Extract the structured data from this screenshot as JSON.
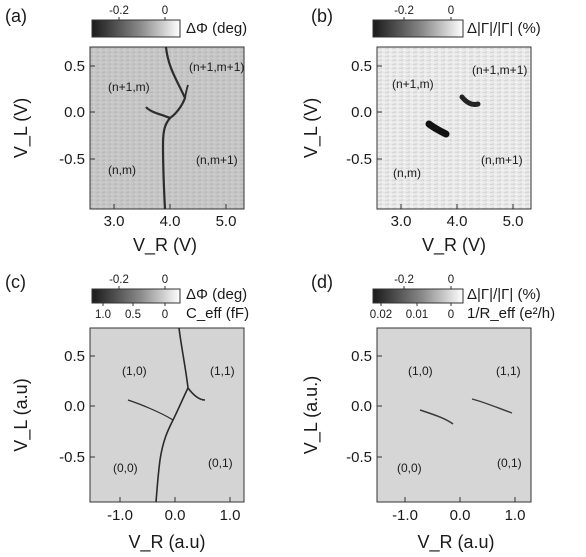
{
  "chart_data": [
    {
      "type": "heatmap",
      "panel_label": "(a)",
      "xlabel": "V_R (V)",
      "ylabel": "V_L (V)",
      "xticks": [
        "3.0",
        "4.0",
        "5.0"
      ],
      "yticks": [
        "0.5",
        "0.0",
        "-0.5"
      ],
      "xlim": [
        2.65,
        5.4
      ],
      "ylim": [
        -0.92,
        0.7
      ],
      "colorbar": {
        "label": "ΔΦ (deg)",
        "ticks": [
          "-0.2",
          "0"
        ],
        "range": [
          -0.3,
          0.02
        ]
      },
      "regions": [
        "(n+1,m)",
        "(n+1,m+1)",
        "(n,m)",
        "(n,m+1)"
      ],
      "grid": false
    },
    {
      "type": "heatmap",
      "panel_label": "(b)",
      "xlabel": "V_R (V)",
      "ylabel": "V_L (V)",
      "xticks": [
        "3.0",
        "4.0",
        "5.0"
      ],
      "yticks": [
        "0.5",
        "0.0",
        "-0.5"
      ],
      "xlim": [
        2.65,
        5.4
      ],
      "ylim": [
        -0.92,
        0.7
      ],
      "colorbar": {
        "label": "Δ|Γ|/|Γ| (%)",
        "ticks": [
          "-0.2",
          "0"
        ],
        "range": [
          -0.3,
          0.02
        ]
      },
      "regions": [
        "(n+1,m)",
        "(n+1,m+1)",
        "(n,m)",
        "(n,m+1)"
      ],
      "grid": false
    },
    {
      "type": "heatmap",
      "panel_label": "(c)",
      "xlabel": "V_R (a.u)",
      "ylabel": "V_L (a.u)",
      "xticks": [
        "-1.0",
        "0.0",
        "1.0"
      ],
      "yticks": [
        "0.5",
        "0.0",
        "-0.5"
      ],
      "xlim": [
        -1.35,
        1.35
      ],
      "ylim": [
        -0.92,
        0.72
      ],
      "colorbar": {
        "label": "ΔΦ (deg)",
        "ticks": [
          "-0.2",
          "0"
        ],
        "range": [
          -0.3,
          0.02
        ],
        "secondary_label": "C_eff (fF)",
        "secondary_ticks": [
          "1.0",
          "0.5",
          "0"
        ]
      },
      "regions": [
        "(1,0)",
        "(1,1)",
        "(0,0)",
        "(0,1)"
      ],
      "grid": false
    },
    {
      "type": "heatmap",
      "panel_label": "(d)",
      "xlabel": "V_R (a.u)",
      "ylabel": "V_L (a.u.)",
      "xticks": [
        "-1.0",
        "0.0",
        "1.0"
      ],
      "yticks": [
        "0.5",
        "0.0",
        "-0.5"
      ],
      "xlim": [
        -1.35,
        1.35
      ],
      "ylim": [
        -0.92,
        0.72
      ],
      "colorbar": {
        "label": "Δ|Γ|/|Γ| (%)",
        "ticks": [
          "-0.2",
          "0"
        ],
        "range": [
          -0.3,
          0.02
        ],
        "secondary_label": "1/R_eff (e²/h)",
        "secondary_ticks": [
          "0.02",
          "0.01",
          "0"
        ]
      },
      "regions": [
        "(1,0)",
        "(1,1)",
        "(0,0)",
        "(0,1)"
      ],
      "grid": false
    }
  ],
  "colors": {
    "background_experiment": "#c9c9c9",
    "background_theory": "#d4d4d4",
    "line": "#2a2a2a"
  }
}
